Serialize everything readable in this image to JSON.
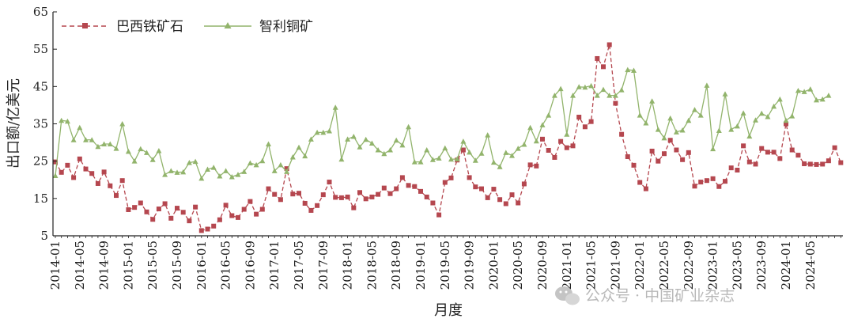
{
  "chart_data": {
    "type": "line",
    "xlabel": "月度",
    "ylabel": "出口额/亿美元",
    "ylim": [
      5,
      65
    ],
    "yticks": [
      5,
      15,
      25,
      35,
      45,
      55,
      65
    ],
    "x_start": "2014-01",
    "x_tick_labels": [
      "2014-01",
      "2014-05",
      "2014-09",
      "2015-01",
      "2015-05",
      "2015-09",
      "2016-01",
      "2016-05",
      "2016-09",
      "2017-01",
      "2017-05",
      "2017-09",
      "2018-01",
      "2018-05",
      "2018-09",
      "2019-01",
      "2019-05",
      "2019-09",
      "2020-01",
      "2020-05",
      "2020-09",
      "2021-01",
      "2021-05",
      "2021-09",
      "2022-01",
      "2022-05",
      "2022-09",
      "2023-01",
      "2023-05",
      "2023-09",
      "2024-01",
      "2024-05"
    ],
    "grid": false,
    "legend_position": "top-left",
    "series": [
      {
        "name": "巴西铁矿石",
        "color": "#b5474f",
        "line_style": "dashed",
        "marker": "square",
        "values": [
          24.8,
          22.0,
          23.9,
          20.6,
          25.6,
          22.9,
          21.7,
          19.0,
          22.1,
          18.4,
          15.8,
          19.8,
          12.0,
          12.6,
          13.8,
          11.4,
          9.4,
          12.2,
          13.6,
          9.7,
          12.4,
          11.3,
          9.0,
          12.7,
          6.4,
          6.8,
          7.6,
          9.3,
          13.2,
          10.4,
          9.9,
          12.1,
          14.2,
          10.8,
          12.1,
          17.6,
          16.1,
          14.7,
          23.0,
          16.2,
          16.4,
          13.7,
          11.8,
          13.1,
          16.0,
          19.4,
          15.3,
          15.2,
          15.4,
          12.5,
          16.6,
          14.9,
          15.4,
          16.1,
          17.8,
          16.3,
          17.6,
          20.6,
          18.5,
          18.2,
          16.9,
          15.4,
          13.8,
          10.6,
          19.3,
          20.5,
          25.3,
          28.0,
          20.6,
          18.1,
          17.6,
          15.2,
          17.5,
          14.7,
          13.6,
          16.0,
          13.8,
          18.9,
          24.0,
          23.7,
          30.9,
          27.9,
          26.0,
          30.3,
          28.6,
          29.1,
          36.8,
          34.2,
          35.6,
          52.5,
          50.3,
          56.2,
          40.5,
          32.2,
          26.2,
          23.9,
          19.3,
          17.6,
          27.7,
          25.0,
          27.0,
          30.6,
          28.0,
          25.4,
          27.3,
          18.3,
          19.4,
          19.8,
          20.3,
          18.2,
          19.6,
          23.2,
          22.6,
          29.1,
          24.8,
          24.2,
          28.4,
          27.4,
          27.4,
          25.7,
          35.0,
          28.0,
          26.6,
          24.3,
          24.2,
          24.1,
          24.2,
          25.1,
          28.6,
          24.6
        ]
      },
      {
        "name": "智利铜矿",
        "color": "#92b46c",
        "line_style": "solid",
        "marker": "triangle",
        "values": [
          21.1,
          35.9,
          35.7,
          30.7,
          34.0,
          30.7,
          30.7,
          28.9,
          29.6,
          29.6,
          28.4,
          35.0,
          27.6,
          25.0,
          28.3,
          27.3,
          25.4,
          27.8,
          21.4,
          22.4,
          22.0,
          22.1,
          24.6,
          24.9,
          20.4,
          22.8,
          23.3,
          21.0,
          22.4,
          20.8,
          21.4,
          22.2,
          24.5,
          24.0,
          25.1,
          29.6,
          22.4,
          24.0,
          22.2,
          26.1,
          28.7,
          26.4,
          30.9,
          32.7,
          32.7,
          33.1,
          39.4,
          25.5,
          30.9,
          31.6,
          28.8,
          30.8,
          29.8,
          28.0,
          27.0,
          28.0,
          30.6,
          29.3,
          34.2,
          24.8,
          24.8,
          28.0,
          25.4,
          25.8,
          28.5,
          25.5,
          25.6,
          30.3,
          27.4,
          25.2,
          27.1,
          32.0,
          24.7,
          23.5,
          27.3,
          26.5,
          28.4,
          29.5,
          34.0,
          30.4,
          34.7,
          37.3,
          42.6,
          44.4,
          32.2,
          42.6,
          44.9,
          44.8,
          45.2,
          42.6,
          44.2,
          42.6,
          42.6,
          44.1,
          49.5,
          49.3,
          37.3,
          35.2,
          41.1,
          33.5,
          31.2,
          36.5,
          32.8,
          33.3,
          35.9,
          38.8,
          37.3,
          45.3,
          28.3,
          33.2,
          43.0,
          33.5,
          34.4,
          37.9,
          31.7,
          36.0,
          37.8,
          36.9,
          39.7,
          41.6,
          35.9,
          37.1,
          43.9,
          43.6,
          44.3,
          41.4,
          41.6,
          42.6
        ]
      }
    ]
  },
  "watermark": {
    "icon": "wechat-icon",
    "text": "公众号 · 中国矿业杂志"
  }
}
